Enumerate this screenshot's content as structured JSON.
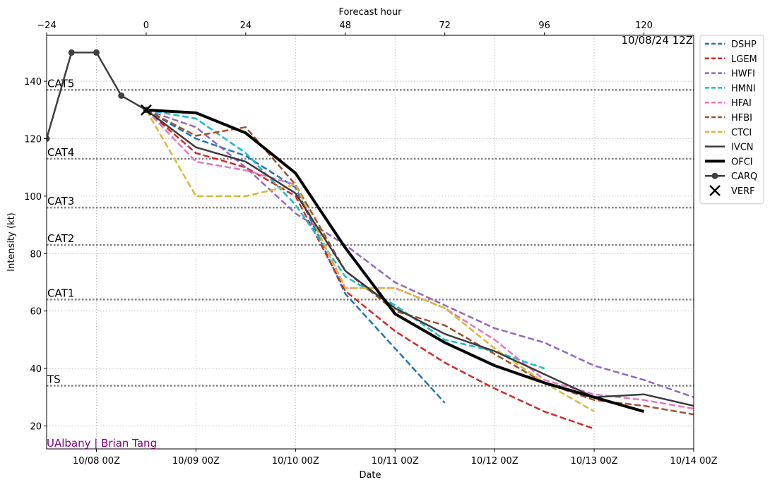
{
  "chart_data": {
    "type": "line",
    "title": "",
    "timestamp": "10/08/24 12Z",
    "credit": "UAlbany | Brian Tang",
    "xlabel": "Date",
    "ylabel": "Intensity (kt)",
    "top_xlabel": "Forecast hour",
    "forecast_hours": [
      -24,
      -18,
      -12,
      -6,
      0,
      12,
      24,
      36,
      48,
      60,
      72,
      84,
      96,
      108,
      120,
      132
    ],
    "xlim_hours": [
      -24,
      132
    ],
    "ylim": [
      12,
      156
    ],
    "yticks": [
      20,
      40,
      60,
      80,
      100,
      120,
      140
    ],
    "top_ticks": [
      -24,
      0,
      24,
      48,
      72,
      96,
      120
    ],
    "top_tick_labels": [
      "−24",
      "0",
      "24",
      "48",
      "72",
      "96",
      "120"
    ],
    "bottom_ticks": [
      {
        "hour": -12,
        "label": "10/08 00Z"
      },
      {
        "hour": 12,
        "label": "10/09 00Z"
      },
      {
        "hour": 36,
        "label": "10/10 00Z"
      },
      {
        "hour": 60,
        "label": "10/11 00Z"
      },
      {
        "hour": 84,
        "label": "10/12 00Z"
      },
      {
        "hour": 108,
        "label": "10/13 00Z"
      },
      {
        "hour": 132,
        "label": "10/14 00Z"
      }
    ],
    "categories": [
      {
        "label": "TS",
        "value": 34
      },
      {
        "label": "CAT1",
        "value": 64
      },
      {
        "label": "CAT2",
        "value": 83
      },
      {
        "label": "CAT3",
        "value": 96
      },
      {
        "label": "CAT4",
        "value": 113
      },
      {
        "label": "CAT5",
        "value": 137
      }
    ],
    "series": [
      {
        "name": "DSHP",
        "color": "#1f77b4",
        "style": "dashed",
        "width": 2.5,
        "x": [
          0,
          12,
          24,
          36,
          48,
          60,
          72
        ],
        "y": [
          130,
          120,
          114,
          103,
          66,
          47,
          28
        ]
      },
      {
        "name": "LGEM",
        "color": "#d62728",
        "style": "dashed",
        "width": 2.5,
        "x": [
          0,
          12,
          24,
          36,
          48,
          60,
          72,
          84,
          96,
          108
        ],
        "y": [
          130,
          115,
          110,
          100,
          67,
          53,
          42,
          33,
          25,
          19
        ]
      },
      {
        "name": "HWFI",
        "color": "#9467bd",
        "style": "dashed",
        "width": 2.5,
        "x": [
          0,
          12,
          24,
          36,
          48,
          60,
          72,
          84,
          96,
          108,
          120,
          132
        ],
        "y": [
          130,
          124,
          110,
          94,
          83,
          70,
          62,
          54,
          49,
          41,
          36,
          30
        ]
      },
      {
        "name": "HMNI",
        "color": "#17becf",
        "style": "dashed",
        "width": 2.5,
        "x": [
          0,
          12,
          24,
          36,
          48,
          60,
          72,
          84,
          96
        ],
        "y": [
          130,
          127,
          115,
          97,
          72,
          62,
          50,
          46,
          40
        ]
      },
      {
        "name": "HFAI",
        "color": "#e377c2",
        "style": "dashed",
        "width": 2.5,
        "x": [
          0,
          12,
          24,
          36,
          48,
          60,
          72,
          84,
          96,
          108,
          120,
          132
        ],
        "y": [
          130,
          112,
          109,
          104,
          68,
          68,
          61,
          50,
          36,
          31,
          29,
          26
        ]
      },
      {
        "name": "HFBI",
        "color": "#a0522d",
        "style": "dashed",
        "width": 2.5,
        "x": [
          0,
          12,
          24,
          36,
          48,
          60,
          72,
          84,
          96,
          108,
          120,
          132
        ],
        "y": [
          130,
          121,
          124,
          104,
          74,
          60,
          55,
          45,
          35,
          29,
          27,
          24
        ]
      },
      {
        "name": "CTCI",
        "color": "#dbb733",
        "style": "dashed",
        "width": 2.5,
        "x": [
          0,
          12,
          24,
          36,
          48,
          60,
          72,
          84,
          96,
          108
        ],
        "y": [
          130,
          100,
          100,
          104,
          68,
          68,
          61,
          47,
          35,
          25
        ]
      },
      {
        "name": "IVCN",
        "color": "#3c3c3c",
        "style": "solid",
        "width": 2.5,
        "x": [
          0,
          12,
          24,
          36,
          48,
          60,
          72,
          84,
          96,
          108,
          120,
          132
        ],
        "y": [
          130,
          117,
          112,
          101,
          74,
          61,
          52,
          46,
          38,
          30,
          31,
          27
        ]
      },
      {
        "name": "OFCI",
        "color": "#000000",
        "style": "solid",
        "width": 4,
        "x": [
          0,
          12,
          24,
          36,
          48,
          60,
          72,
          84,
          96,
          108,
          120
        ],
        "y": [
          130,
          129,
          122,
          108,
          82,
          59,
          49,
          41,
          35,
          30,
          25
        ]
      },
      {
        "name": "CARQ",
        "color": "#404040",
        "style": "solid-marker",
        "width": 2.5,
        "x": [
          -24,
          -18,
          -12,
          -6,
          0
        ],
        "y": [
          120,
          150,
          150,
          135,
          130
        ]
      },
      {
        "name": "VERF",
        "color": "#000000",
        "style": "x-marker",
        "width": 2.5,
        "x": [
          0
        ],
        "y": [
          130
        ]
      }
    ],
    "legend_position": "outside-right-top",
    "grid": true
  }
}
